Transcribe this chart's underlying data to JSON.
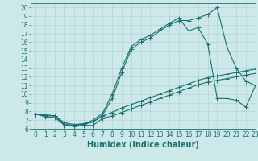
{
  "background_color": "#cce8e8",
  "grid_color": "#b0d0d0",
  "line_color": "#1a7070",
  "xlabel": "Humidex (Indice chaleur)",
  "xlim": [
    -0.5,
    23
  ],
  "ylim": [
    6,
    20.5
  ],
  "xticks": [
    0,
    1,
    2,
    3,
    4,
    5,
    6,
    7,
    8,
    9,
    10,
    11,
    12,
    13,
    14,
    15,
    16,
    17,
    18,
    19,
    20,
    21,
    22,
    23
  ],
  "yticks": [
    6,
    7,
    8,
    9,
    10,
    11,
    12,
    13,
    14,
    15,
    16,
    17,
    18,
    19,
    20
  ],
  "line1_x": [
    0,
    1,
    2,
    3,
    4,
    5,
    6,
    7,
    8,
    9,
    10,
    11,
    12,
    13,
    14,
    15,
    16,
    17,
    18,
    19,
    20,
    21,
    22,
    23
  ],
  "line1_y": [
    7.7,
    7.4,
    7.3,
    6.4,
    6.3,
    6.4,
    6.4,
    7.2,
    7.5,
    7.9,
    8.3,
    8.7,
    9.1,
    9.5,
    9.9,
    10.3,
    10.7,
    11.1,
    11.4,
    11.6,
    11.8,
    12.0,
    12.2,
    12.4
  ],
  "line2_x": [
    0,
    1,
    2,
    3,
    4,
    5,
    6,
    7,
    8,
    9,
    10,
    11,
    12,
    13,
    14,
    15,
    16,
    17,
    18,
    19,
    20,
    21,
    22,
    23
  ],
  "line2_y": [
    7.7,
    7.5,
    7.5,
    6.7,
    6.5,
    6.6,
    6.8,
    7.5,
    7.9,
    8.4,
    8.8,
    9.2,
    9.6,
    10.0,
    10.4,
    10.8,
    11.2,
    11.6,
    11.9,
    12.1,
    12.3,
    12.5,
    12.7,
    12.9
  ],
  "line3_x": [
    0,
    2,
    3,
    4,
    5,
    6,
    7,
    8,
    9,
    10,
    11,
    12,
    13,
    14,
    15,
    16,
    17,
    18,
    19,
    20,
    21,
    22,
    23
  ],
  "line3_y": [
    7.7,
    7.5,
    6.5,
    6.4,
    6.5,
    6.8,
    7.6,
    9.5,
    12.5,
    15.2,
    16.0,
    16.5,
    17.3,
    18.0,
    18.5,
    18.5,
    18.8,
    19.2,
    20.0,
    15.5,
    13.0,
    11.5,
    11.0
  ],
  "line4_x": [
    0,
    2,
    3,
    4,
    5,
    6,
    7,
    8,
    9,
    10,
    11,
    12,
    13,
    14,
    15,
    16,
    17,
    18,
    19,
    20,
    21,
    22,
    23
  ],
  "line4_y": [
    7.7,
    7.5,
    6.5,
    6.4,
    6.5,
    7.0,
    7.8,
    10.0,
    13.0,
    15.5,
    16.3,
    16.8,
    17.5,
    18.2,
    18.8,
    17.3,
    17.7,
    15.8,
    9.5,
    9.5,
    9.3,
    8.5,
    11.0
  ],
  "tick_fontsize": 5.5,
  "label_fontsize": 7,
  "marker_size": 2.0,
  "line_width": 0.8
}
